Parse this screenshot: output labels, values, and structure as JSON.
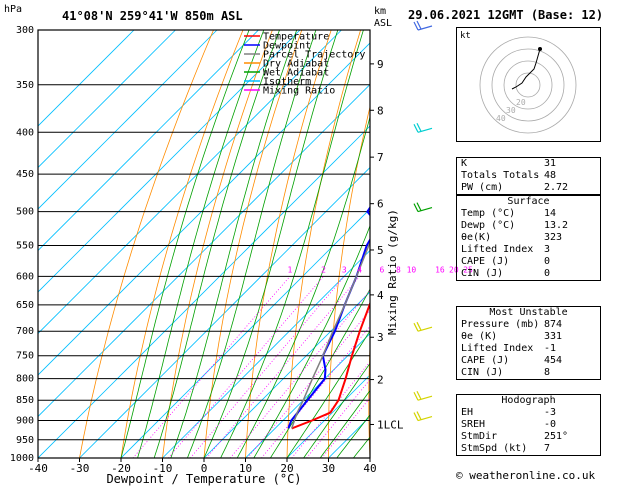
{
  "header": {
    "units_left": "hPa",
    "location": "41°08'N  259°41'W  850m  ASL",
    "units_km": "km",
    "units_asl": "ASL",
    "datetime": "29.06.2021  12GMT  (Base: 12)"
  },
  "legend": [
    {
      "label": "Temperature",
      "color": "#ff0000"
    },
    {
      "label": "Dewpoint",
      "color": "#0000ff"
    },
    {
      "label": "Parcel Trajectory",
      "color": "#808080"
    },
    {
      "label": "Dry Adiabat",
      "color": "#ff8c00"
    },
    {
      "label": "Wet Adiabat",
      "color": "#00a000"
    },
    {
      "label": "Isotherm",
      "color": "#00bfff"
    },
    {
      "label": "Mixing Ratio",
      "color": "#ff00ff"
    }
  ],
  "chart_data": {
    "type": "line",
    "xlabel": "Dewpoint / Temperature (°C)",
    "ylabel_right": "Mixing Ratio (g/kg)",
    "pressure_levels": [
      "300",
      "350",
      "400",
      "450",
      "500",
      "550",
      "600",
      "650",
      "700",
      "750",
      "800",
      "850",
      "900",
      "950",
      "1000"
    ],
    "x_ticks": [
      "-40",
      "-30",
      "-20",
      "-10",
      "0",
      "10",
      "20",
      "30",
      "40"
    ],
    "xlim": [
      -40,
      40
    ],
    "ylim": [
      1000,
      300
    ],
    "km_ticks": [
      {
        "label": "9",
        "p": 330
      },
      {
        "label": "8",
        "p": 376
      },
      {
        "label": "7",
        "p": 429
      },
      {
        "label": "6",
        "p": 489
      },
      {
        "label": "5",
        "p": 557
      },
      {
        "label": "4",
        "p": 632
      },
      {
        "label": "3",
        "p": 712
      },
      {
        "label": "2",
        "p": 802
      },
      {
        "label": "1LCL",
        "p": 910
      }
    ],
    "mixing_ratio_labels": [
      "1",
      "2",
      "3",
      "4",
      "6",
      "8",
      "10",
      "16",
      "20",
      "25"
    ],
    "mixing_ratio_label_p": 600,
    "series": [
      {
        "name": "Temperature",
        "color": "#ff0000",
        "points": [
          [
            920,
            14
          ],
          [
            900,
            17
          ],
          [
            880,
            19.5
          ],
          [
            850,
            18.5
          ],
          [
            800,
            15
          ],
          [
            750,
            11
          ],
          [
            700,
            7
          ],
          [
            650,
            3
          ],
          [
            600,
            -1
          ],
          [
            550,
            -5
          ],
          [
            520,
            -8
          ],
          [
            500,
            -10
          ],
          [
            450,
            -15
          ],
          [
            400,
            -21
          ],
          [
            350,
            -28
          ],
          [
            320,
            -33
          ],
          [
            300,
            -36
          ]
        ]
      },
      {
        "name": "Dewpoint",
        "color": "#0000ff",
        "points": [
          [
            920,
            13.2
          ],
          [
            900,
            12
          ],
          [
            850,
            11
          ],
          [
            800,
            10
          ],
          [
            780,
            8
          ],
          [
            750,
            4
          ],
          [
            700,
            1
          ],
          [
            650,
            -3
          ],
          [
            600,
            -7
          ],
          [
            550,
            -12
          ],
          [
            520,
            -14
          ],
          [
            500,
            -20
          ],
          [
            450,
            -23
          ],
          [
            420,
            -28
          ],
          [
            400,
            -34
          ],
          [
            380,
            -36
          ],
          [
            350,
            -43
          ],
          [
            300,
            -50
          ]
        ]
      },
      {
        "name": "Parcel Trajectory",
        "color": "#808080",
        "points": [
          [
            920,
            14
          ],
          [
            880,
            11.5
          ],
          [
            850,
            10
          ],
          [
            800,
            7
          ],
          [
            750,
            4
          ],
          [
            700,
            0.5
          ],
          [
            650,
            -3
          ],
          [
            600,
            -7
          ],
          [
            550,
            -11.5
          ],
          [
            500,
            -16
          ],
          [
            450,
            -21
          ],
          [
            400,
            -27
          ],
          [
            350,
            -34
          ],
          [
            300,
            -42
          ]
        ]
      }
    ],
    "wind_barbs": [
      {
        "p": 300,
        "color": "#4169e1"
      },
      {
        "p": 400,
        "color": "#00ced1"
      },
      {
        "p": 500,
        "color": "#00a000"
      },
      {
        "p": 700,
        "color": "#d4d400"
      },
      {
        "p": 850,
        "color": "#d4d400"
      },
      {
        "p": 900,
        "color": "#d4d400"
      }
    ]
  },
  "hodograph": {
    "title": "kt",
    "ring_labels": [
      "40",
      "30",
      "20"
    ]
  },
  "indices": {
    "rows": [
      {
        "label": "K",
        "value": "31"
      },
      {
        "label": "Totals Totals",
        "value": "48"
      },
      {
        "label": "PW (cm)",
        "value": "2.72"
      }
    ]
  },
  "surface": {
    "title": "Surface",
    "rows": [
      {
        "label": "Temp (°C)",
        "value": "14"
      },
      {
        "label": "Dewp (°C)",
        "value": "13.2"
      },
      {
        "label": "θe(K)",
        "value": "323"
      },
      {
        "label": "Lifted Index",
        "value": "3"
      },
      {
        "label": "CAPE (J)",
        "value": "0"
      },
      {
        "label": "CIN (J)",
        "value": "0"
      }
    ]
  },
  "most_unstable": {
    "title": "Most Unstable",
    "rows": [
      {
        "label": "Pressure (mb)",
        "value": "874"
      },
      {
        "label": "θe (K)",
        "value": "331"
      },
      {
        "label": "Lifted Index",
        "value": "-1"
      },
      {
        "label": "CAPE (J)",
        "value": "454"
      },
      {
        "label": "CIN (J)",
        "value": "8"
      }
    ]
  },
  "hodograph_table": {
    "title": "Hodograph",
    "rows": [
      {
        "label": "EH",
        "value": "-3"
      },
      {
        "label": "SREH",
        "value": "-0"
      },
      {
        "label": "StmDir",
        "value": "251°"
      },
      {
        "label": "StmSpd (kt)",
        "value": "7"
      }
    ]
  },
  "footer": "© weatheronline.co.uk"
}
